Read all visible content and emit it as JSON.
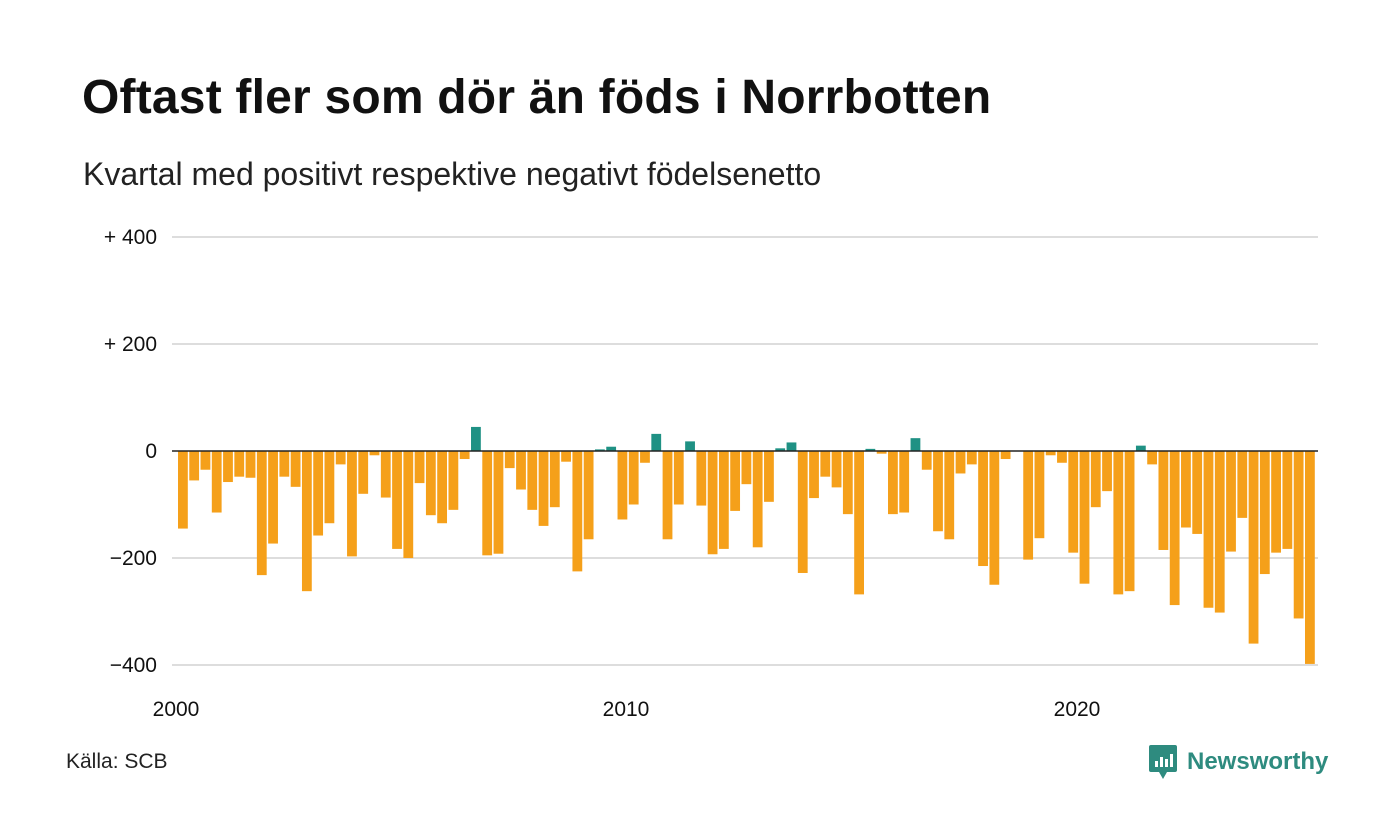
{
  "chart_data": {
    "type": "bar",
    "title": "Oftast fler som dör än föds i Norrbotten",
    "subtitle": "Kvartal med positivt respektive negativt födelsenetto",
    "ylim": [
      -400,
      400
    ],
    "y_ticks": [
      400,
      200,
      0,
      -200,
      -400
    ],
    "y_tick_labels": [
      "+ 400",
      "+ 200",
      "0",
      "−200",
      "−400"
    ],
    "x_tick_labels": [
      "2000",
      "2010",
      "2020"
    ],
    "grid": true,
    "colors": {
      "negative": "#f5a01a",
      "positive": "#1f9184",
      "zero_line": "#222222",
      "grid": "#dddddd"
    },
    "categories": [
      "2000K1",
      "2000K2",
      "2000K3",
      "2000K4",
      "2001K1",
      "2001K2",
      "2001K3",
      "2001K4",
      "2002K1",
      "2002K2",
      "2002K3",
      "2002K4",
      "2003K1",
      "2003K2",
      "2003K3",
      "2003K4",
      "2004K1",
      "2004K2",
      "2004K3",
      "2004K4",
      "2005K1",
      "2005K2",
      "2005K3",
      "2005K4",
      "2006K1",
      "2006K2",
      "2006K3",
      "2006K4",
      "2007K1",
      "2007K2",
      "2007K3",
      "2007K4",
      "2008K1",
      "2008K2",
      "2008K3",
      "2008K4",
      "2009K1",
      "2009K2",
      "2009K3",
      "2009K4",
      "2010K1",
      "2010K2",
      "2010K3",
      "2010K4",
      "2011K1",
      "2011K2",
      "2011K3",
      "2011K4",
      "2012K1",
      "2012K2",
      "2012K3",
      "2012K4",
      "2013K1",
      "2013K2",
      "2013K3",
      "2013K4",
      "2014K1",
      "2014K2",
      "2014K3",
      "2014K4",
      "2015K1",
      "2015K2",
      "2015K3",
      "2015K4",
      "2016K1",
      "2016K2",
      "2016K3",
      "2016K4",
      "2017K1",
      "2017K2",
      "2017K3",
      "2017K4",
      "2018K1",
      "2018K2",
      "2018K3",
      "2018K4",
      "2019K1",
      "2019K2",
      "2019K3",
      "2019K4",
      "2020K1",
      "2020K2",
      "2020K3",
      "2020K4",
      "2021K1",
      "2021K2",
      "2021K3",
      "2021K4",
      "2022K1",
      "2022K2",
      "2022K3",
      "2022K4",
      "2023K1",
      "2023K2",
      "2023K3",
      "2023K4",
      "2024K1",
      "2024K2",
      "2024K3",
      "2024K4",
      "2025K1"
    ],
    "values": [
      -145,
      -55,
      -35,
      -115,
      -58,
      -48,
      -50,
      -232,
      -173,
      -48,
      -67,
      -262,
      -158,
      -135,
      -25,
      -197,
      -80,
      -8,
      -87,
      -183,
      -200,
      -60,
      -120,
      -135,
      -110,
      -15,
      45,
      -195,
      -192,
      -32,
      -72,
      -110,
      -140,
      -105,
      -20,
      -225,
      -165,
      3,
      8,
      -128,
      -100,
      -22,
      32,
      -165,
      -100,
      18,
      -102,
      -193,
      -183,
      -112,
      -62,
      -180,
      -95,
      5,
      16,
      -228,
      -88,
      -48,
      -68,
      -118,
      -268,
      4,
      -5,
      -118,
      -115,
      24,
      -35,
      -150,
      -165,
      -42,
      -25,
      -215,
      -250,
      -15,
      0,
      -203,
      -163,
      -8,
      -22,
      -190,
      -248,
      -105,
      -75,
      -268,
      -262,
      10,
      -25,
      -185,
      -288,
      -143,
      -155,
      -293,
      -302,
      -188,
      -125,
      -360,
      -230,
      -190,
      -183,
      -313,
      -398
    ]
  },
  "source": "Källa: SCB",
  "brand": {
    "name": "Newsworthy",
    "icon": "newsworthy-logo-icon",
    "color": "#2e8b7f"
  }
}
